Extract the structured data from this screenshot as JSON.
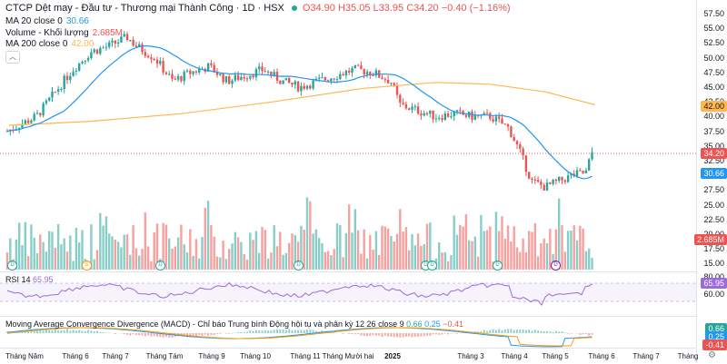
{
  "header": {
    "symbol": "CTCP Dệt may - Đầu tư - Thương mại Thành Công · 1D · HSX",
    "ohlc": "O34.90  H35.05  L33.95  C34.20  −0.40 (−1.16%)"
  },
  "legend": {
    "ma20_label": "MA 20 close 0",
    "ma20_value": "30.66",
    "ma20_color": "#2196f3",
    "volume_label": "Volume - Khối lượng",
    "volume_value": "2.685M",
    "ma200_label": "MA 200 close 0",
    "ma200_value": "42.00",
    "ma200_color": "#ffb74d"
  },
  "price_scale": {
    "ticks": [
      "57.50",
      "55.00",
      "52.50",
      "50.00",
      "47.50",
      "45.00",
      "42.50",
      "40.00",
      "37.50",
      "35.00",
      "32.50",
      "30.00",
      "27.50",
      "25.00",
      "22.50",
      "20.00",
      "17.50",
      "15.00"
    ],
    "tags": {
      "ma200": "42.00",
      "last": "34.20",
      "ma20": "30.66",
      "volume": "2.685M"
    }
  },
  "rsi": {
    "label": "RSI 14",
    "value": "65.95",
    "color": "#9c6bd9",
    "scale": [
      "80.00",
      "60.00"
    ]
  },
  "macd": {
    "label": "Moving Average Convergence Divergence (MACD) - Chỉ báo Trung bình Động hội tụ và phân kỳ 12 26 close 9",
    "v1": "0.66",
    "v2": "0.25",
    "v3": "−0.41",
    "tags": [
      "0.66",
      "0.25",
      "-0.41"
    ]
  },
  "events": [
    {
      "letter": "D",
      "color": "#26a69a"
    },
    {
      "letter": "S",
      "color": "#ff9800"
    },
    {
      "letter": "D",
      "color": "#26a69a"
    },
    {
      "letter": "D",
      "color": "#26a69a"
    },
    {
      "letter": "D",
      "color": "#26a69a"
    },
    {
      "letter": "D",
      "color": "#26a69a"
    },
    {
      "letter": "D",
      "color": "#26a69a"
    },
    {
      "letter": "D",
      "color": "#7b1fa2"
    },
    {
      "letter": "D",
      "color": "#26a69a"
    },
    {
      "letter": "D",
      "color": "#26a69a"
    }
  ],
  "time_axis": [
    "Tháng Năm",
    "Tháng 6",
    "Tháng 7",
    "Tháng Tám",
    "Tháng 9",
    "Tháng 10",
    "Tháng 11",
    "Tháng Mười hai",
    "2025",
    "Tháng 3",
    "Tháng 4",
    "Tháng 5",
    "Tháng 6",
    "Tháng 7",
    "Tháng"
  ],
  "colors": {
    "up": "#26a69a",
    "down": "#ef5350"
  },
  "chart_data": {
    "type": "candlestick",
    "series": [
      {
        "name": "MA 20 close 0",
        "last": 30.66
      },
      {
        "name": "MA 200 close 0",
        "last": 42.0
      }
    ],
    "last_close": 34.2,
    "last_volume": "2.685M",
    "y_range": [
      15.0,
      58.0
    ]
  }
}
